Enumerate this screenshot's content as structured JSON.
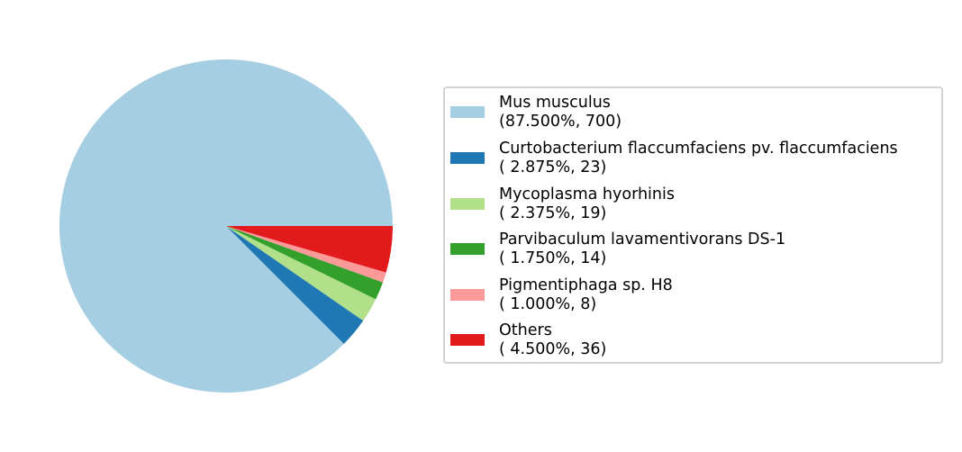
{
  "chart_data": {
    "type": "pie",
    "title": "",
    "slices": [
      {
        "label": "Mus musculus",
        "value": 700,
        "percent_text": "(87.500%, 700)",
        "color": "#a6cee3"
      },
      {
        "label": "Curtobacterium flaccumfaciens pv. flaccumfaciens",
        "value": 23,
        "percent_text": "( 2.875%, 23)",
        "color": "#1f78b4"
      },
      {
        "label": "Mycoplasma hyorhinis",
        "value": 19,
        "percent_text": "( 2.375%, 19)",
        "color": "#b2df8a"
      },
      {
        "label": "Parvibaculum lavamentivorans DS-1",
        "value": 14,
        "percent_text": "( 1.750%, 14)",
        "color": "#33a02c"
      },
      {
        "label": "Pigmentiphaga sp. H8",
        "value": 8,
        "percent_text": "( 1.000%, 8)",
        "color": "#fb9a99"
      },
      {
        "label": "Others",
        "value": 36,
        "percent_text": "( 4.500%, 36)",
        "color": "#e31a1c"
      }
    ],
    "legend_position": "right"
  }
}
